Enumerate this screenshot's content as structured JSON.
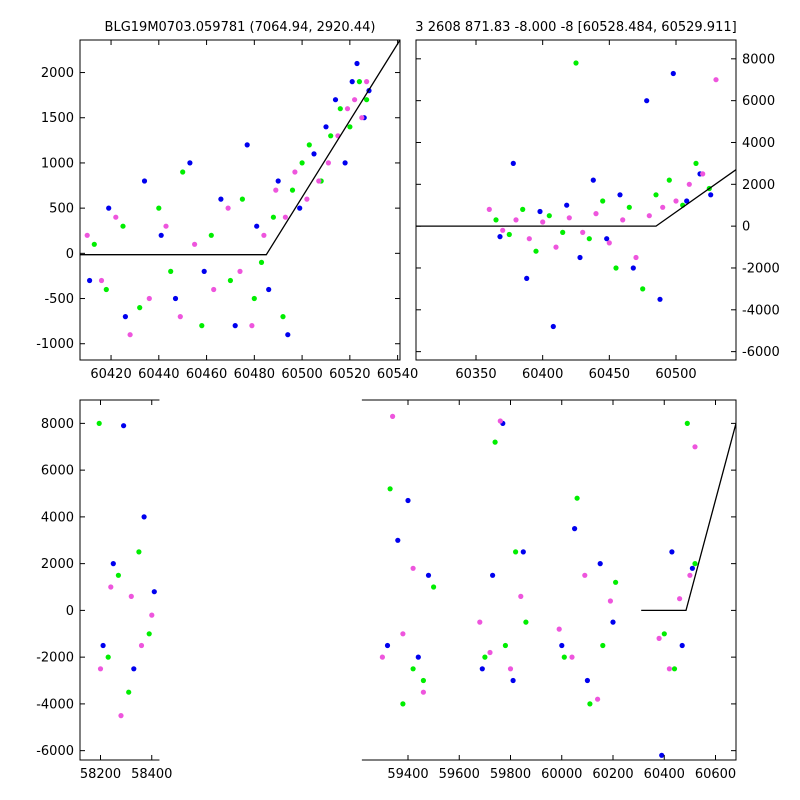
{
  "chart_data": [
    {
      "type": "scatter",
      "title": "BLG19M0703.059781 (7064.94, 2920.44)",
      "xlim": [
        60407,
        60541
      ],
      "ylim": [
        -1180,
        2360
      ],
      "xticks": [
        60420,
        60440,
        60460,
        60480,
        60500,
        60520,
        60540
      ],
      "yticks": [
        -1000,
        -500,
        0,
        500,
        1000,
        1500,
        2000
      ],
      "yaxis_side": "left",
      "model_line": {
        "x": [
          60407,
          60485,
          60541
        ],
        "y": [
          -15,
          -15,
          2360
        ]
      },
      "series": [
        {
          "color": "#00ee00",
          "x": [
            60413,
            60418,
            60425,
            60432,
            60440,
            60445,
            60450,
            60458,
            60462,
            60470,
            60475,
            60480,
            60483,
            60488,
            60492,
            60496,
            60500,
            60503,
            60508,
            60512,
            60516,
            60520,
            60524,
            60527
          ],
          "y": [
            100,
            -400,
            300,
            -600,
            500,
            -200,
            900,
            -800,
            200,
            -300,
            600,
            -500,
            -100,
            400,
            -700,
            700,
            1000,
            1200,
            800,
            1300,
            1600,
            1400,
            1900,
            1700
          ]
        },
        {
          "color": "#0000ee",
          "x": [
            60411,
            60419,
            60426,
            60434,
            60441,
            60447,
            60453,
            60459,
            60466,
            60472,
            60477,
            60481,
            60486,
            60490,
            60494,
            60499,
            60505,
            60510,
            60514,
            60518,
            60521,
            60523,
            60526,
            60528
          ],
          "y": [
            -300,
            500,
            -700,
            800,
            200,
            -500,
            1000,
            -200,
            600,
            -800,
            1200,
            300,
            -400,
            800,
            -900,
            500,
            1100,
            1400,
            1700,
            1000,
            1900,
            2100,
            1500,
            1800
          ]
        },
        {
          "color": "#ee55dd",
          "x": [
            60410,
            60416,
            60422,
            60428,
            60436,
            60443,
            60449,
            60455,
            60463,
            60469,
            60474,
            60479,
            60484,
            60489,
            60493,
            60497,
            60502,
            60507,
            60511,
            60515,
            60519,
            60522,
            60525,
            60527
          ],
          "y": [
            200,
            -300,
            400,
            -900,
            -500,
            300,
            -700,
            100,
            -400,
            500,
            -200,
            -800,
            200,
            700,
            400,
            900,
            600,
            800,
            1000,
            1300,
            1600,
            1700,
            1500,
            1900
          ]
        }
      ]
    },
    {
      "type": "scatter",
      "title": "3 2608 871.83 -8.000 -8 [60528.484, 60529.911]",
      "xlim": [
        60305,
        60545
      ],
      "ylim": [
        -6400,
        8900
      ],
      "xticks": [
        60350,
        60400,
        60450,
        60500
      ],
      "yticks": [
        -6000,
        -4000,
        -2000,
        0,
        2000,
        4000,
        6000,
        8000
      ],
      "yaxis_side": "right",
      "model_line": {
        "x": [
          60305,
          60485,
          60545
        ],
        "y": [
          0,
          0,
          2700
        ]
      },
      "series": [
        {
          "color": "#00ee00",
          "x": [
            60365,
            60375,
            60385,
            60395,
            60405,
            60415,
            60425,
            60435,
            60445,
            60455,
            60465,
            60475,
            60485,
            60495,
            60505,
            60515,
            60525
          ],
          "y": [
            300,
            -400,
            800,
            -1200,
            500,
            -300,
            7800,
            -600,
            1200,
            -2000,
            900,
            -3000,
            1500,
            2200,
            1000,
            3000,
            1800
          ]
        },
        {
          "color": "#0000ee",
          "x": [
            60368,
            60378,
            60388,
            60398,
            60408,
            60418,
            60428,
            60438,
            60448,
            60458,
            60468,
            60478,
            60488,
            60498,
            60508,
            60518,
            60526
          ],
          "y": [
            -500,
            3000,
            -2500,
            700,
            -4800,
            1000,
            -1500,
            2200,
            -600,
            1500,
            -2000,
            6000,
            -3500,
            7300,
            1200,
            2500,
            1500
          ]
        },
        {
          "color": "#ee55dd",
          "x": [
            60360,
            60370,
            60380,
            60390,
            60400,
            60410,
            60420,
            60430,
            60440,
            60450,
            60460,
            60470,
            60480,
            60490,
            60500,
            60510,
            60520,
            60530
          ],
          "y": [
            800,
            -200,
            300,
            -600,
            200,
            -1000,
            400,
            -300,
            600,
            -800,
            300,
            -1500,
            500,
            900,
            1200,
            2000,
            2500,
            7000
          ]
        }
      ]
    },
    {
      "type": "scatter",
      "title": "",
      "xlim": [
        58120,
        60680
      ],
      "ylim": [
        -6400,
        9000
      ],
      "xticks": [
        58200,
        58400,
        59400,
        59600,
        59800,
        60000,
        60200,
        60400,
        60600
      ],
      "yticks": [
        -6000,
        -4000,
        -2000,
        0,
        2000,
        4000,
        6000,
        8000
      ],
      "yaxis_side": "left",
      "axis_break_x": [
        58430,
        59220
      ],
      "model_line": {
        "x": [
          60310,
          60485,
          60680
        ],
        "y": [
          0,
          0,
          8000
        ]
      },
      "series": [
        {
          "color": "#00ee00",
          "x": [
            58195,
            58230,
            58270,
            58310,
            58350,
            58390,
            59330,
            59380,
            59420,
            59460,
            59500,
            59700,
            59740,
            59780,
            59820,
            59860,
            60010,
            60060,
            60110,
            60160,
            60210,
            60400,
            60440,
            60490,
            60520
          ],
          "y": [
            8000,
            -2000,
            1500,
            -3500,
            2500,
            -1000,
            5200,
            -4000,
            -2500,
            -3000,
            1000,
            -2000,
            7200,
            -1500,
            2500,
            -500,
            -2000,
            4800,
            -4000,
            -1500,
            1200,
            -1000,
            -2500,
            8000,
            2000
          ]
        },
        {
          "color": "#0000ee",
          "x": [
            58210,
            58250,
            58290,
            58330,
            58370,
            58410,
            59320,
            59360,
            59400,
            59440,
            59480,
            59690,
            59730,
            59770,
            59810,
            59850,
            60000,
            60050,
            60100,
            60150,
            60200,
            60390,
            60430,
            60470,
            60510
          ],
          "y": [
            -1500,
            2000,
            7900,
            -2500,
            4000,
            800,
            -1500,
            3000,
            4700,
            -2000,
            1500,
            -2500,
            1500,
            8000,
            -3000,
            2500,
            -1500,
            3500,
            -3000,
            2000,
            -500,
            -6200,
            2500,
            -1500,
            1800
          ]
        },
        {
          "color": "#ee55dd",
          "x": [
            58200,
            58240,
            58280,
            58320,
            58360,
            58400,
            59300,
            59340,
            59380,
            59420,
            59460,
            59680,
            59720,
            59760,
            59800,
            59840,
            59990,
            60040,
            60090,
            60140,
            60190,
            60380,
            60420,
            60460,
            60500,
            60520
          ],
          "y": [
            -2500,
            1000,
            -4500,
            600,
            -1500,
            -200,
            -2000,
            8300,
            -1000,
            1800,
            -3500,
            -500,
            -1800,
            8100,
            -2500,
            600,
            -800,
            -2000,
            1500,
            -3800,
            400,
            -1200,
            -2500,
            500,
            1500,
            7000
          ]
        }
      ]
    }
  ]
}
